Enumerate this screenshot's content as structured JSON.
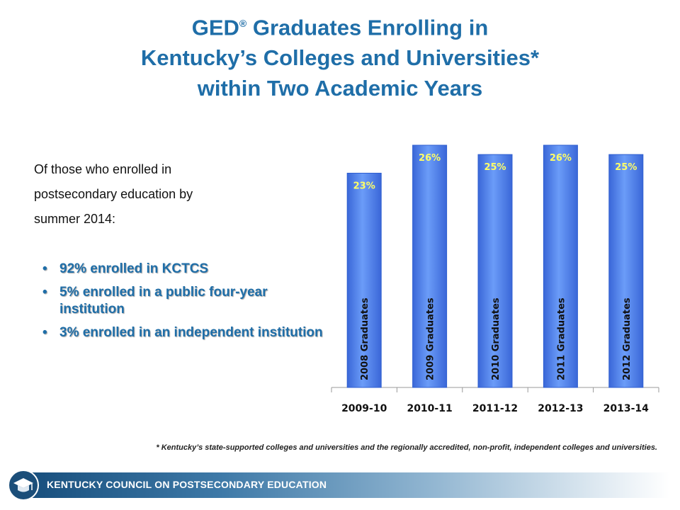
{
  "title": {
    "line1_a": "GED",
    "reg_mark": "®",
    "line1_b": " Graduates Enrolling in",
    "line2": "Kentucky’s Colleges and Universities*",
    "line3": "within Two Academic Years"
  },
  "intro": {
    "line1": "Of those who enrolled in",
    "line2": "postsecondary education by",
    "line3": "summer 2014:"
  },
  "bullets": [
    {
      "marker": "•",
      "text": "92% enrolled in KCTCS"
    },
    {
      "marker": "•",
      "text": "5% enrolled in a public four-year institution"
    },
    {
      "marker": "•",
      "text": "3% enrolled in an independent institution"
    }
  ],
  "footnote": "* Kentucky’s state-supported  colleges and universities and the regionally accredited, non-profit, independent colleges and universities.",
  "footer": {
    "label": "KENTUCKY COUNCIL ON POSTSECONDARY EDUCATION",
    "logo_icon": "graduation-cap-icon"
  },
  "colors": {
    "title": "#1f6ea8",
    "bar": "#5b8ff5",
    "bar_dark": "#2f5fd0",
    "data_label": "#ffff66",
    "footer_start": "#184f7d"
  },
  "chart_data": {
    "type": "bar",
    "categories": [
      "2009-10",
      "2010-11",
      "2011-12",
      "2012-13",
      "2013-14"
    ],
    "series": [
      {
        "values": [
          23,
          26,
          25,
          26,
          25
        ]
      }
    ],
    "bar_labels": [
      "2008 Graduates",
      "2009 Graduates",
      "2010 Graduates",
      "2011 Graduates",
      "2012 Graduates"
    ],
    "data_labels": [
      "23%",
      "26%",
      "25%",
      "26%",
      "25%"
    ],
    "ylim": [
      0,
      26
    ],
    "xlabel": "",
    "ylabel": "",
    "grid": false,
    "legend": "none"
  }
}
